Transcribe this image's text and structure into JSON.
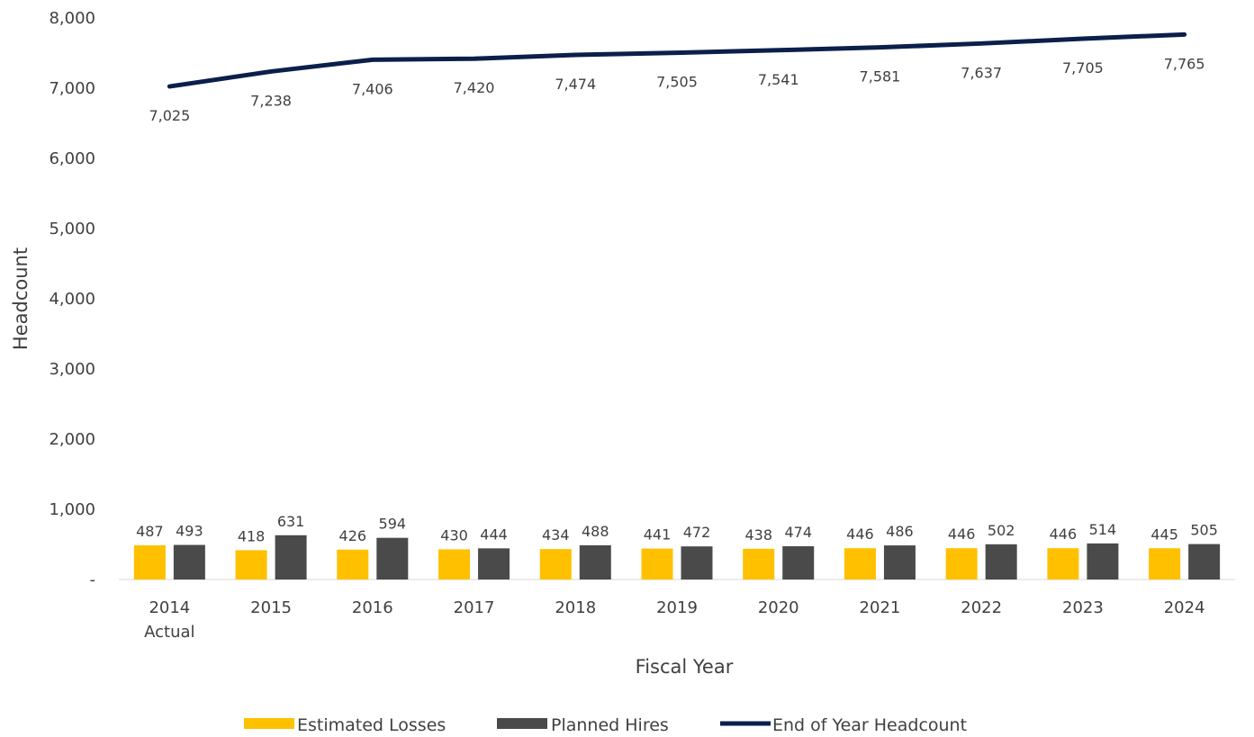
{
  "chart_data": {
    "type": "bar",
    "xlabel": "Fiscal Year",
    "ylabel": "Headcount",
    "ylim": [
      0,
      8000
    ],
    "y_ticks": [
      "-",
      "1,000",
      "2,000",
      "3,000",
      "4,000",
      "5,000",
      "6,000",
      "7,000",
      "8,000"
    ],
    "y_tick_values": [
      0,
      1000,
      2000,
      3000,
      4000,
      5000,
      6000,
      7000,
      8000
    ],
    "grid": false,
    "legend_position": "bottom",
    "categories": [
      [
        "2014",
        "Actual"
      ],
      [
        "2015"
      ],
      [
        "2016"
      ],
      [
        "2017"
      ],
      [
        "2018"
      ],
      [
        "2019"
      ],
      [
        "2020"
      ],
      [
        "2021"
      ],
      [
        "2022"
      ],
      [
        "2023"
      ],
      [
        "2024"
      ]
    ],
    "series": [
      {
        "name": "Estimated Losses",
        "type": "bar",
        "color": "#FFC000",
        "values": [
          487,
          418,
          426,
          430,
          434,
          441,
          438,
          446,
          446,
          446,
          445
        ],
        "labels": [
          "487",
          "418",
          "426",
          "430",
          "434",
          "441",
          "438",
          "446",
          "446",
          "446",
          "445"
        ]
      },
      {
        "name": "Planned Hires",
        "type": "bar",
        "color": "#4A4A4A",
        "values": [
          493,
          631,
          594,
          444,
          488,
          472,
          474,
          486,
          502,
          514,
          505
        ],
        "labels": [
          "493",
          "631",
          "594",
          "444",
          "488",
          "472",
          "474",
          "486",
          "502",
          "514",
          "505"
        ]
      },
      {
        "name": "End of Year Headcount",
        "type": "line",
        "color": "#0B1F4B",
        "values": [
          7025,
          7238,
          7406,
          7420,
          7474,
          7505,
          7541,
          7581,
          7637,
          7705,
          7765
        ],
        "labels": [
          "7,025",
          "7,238",
          "7,406",
          "7,420",
          "7,474",
          "7,505",
          "7,541",
          "7,581",
          "7,637",
          "7,705",
          "7,765"
        ]
      }
    ]
  }
}
